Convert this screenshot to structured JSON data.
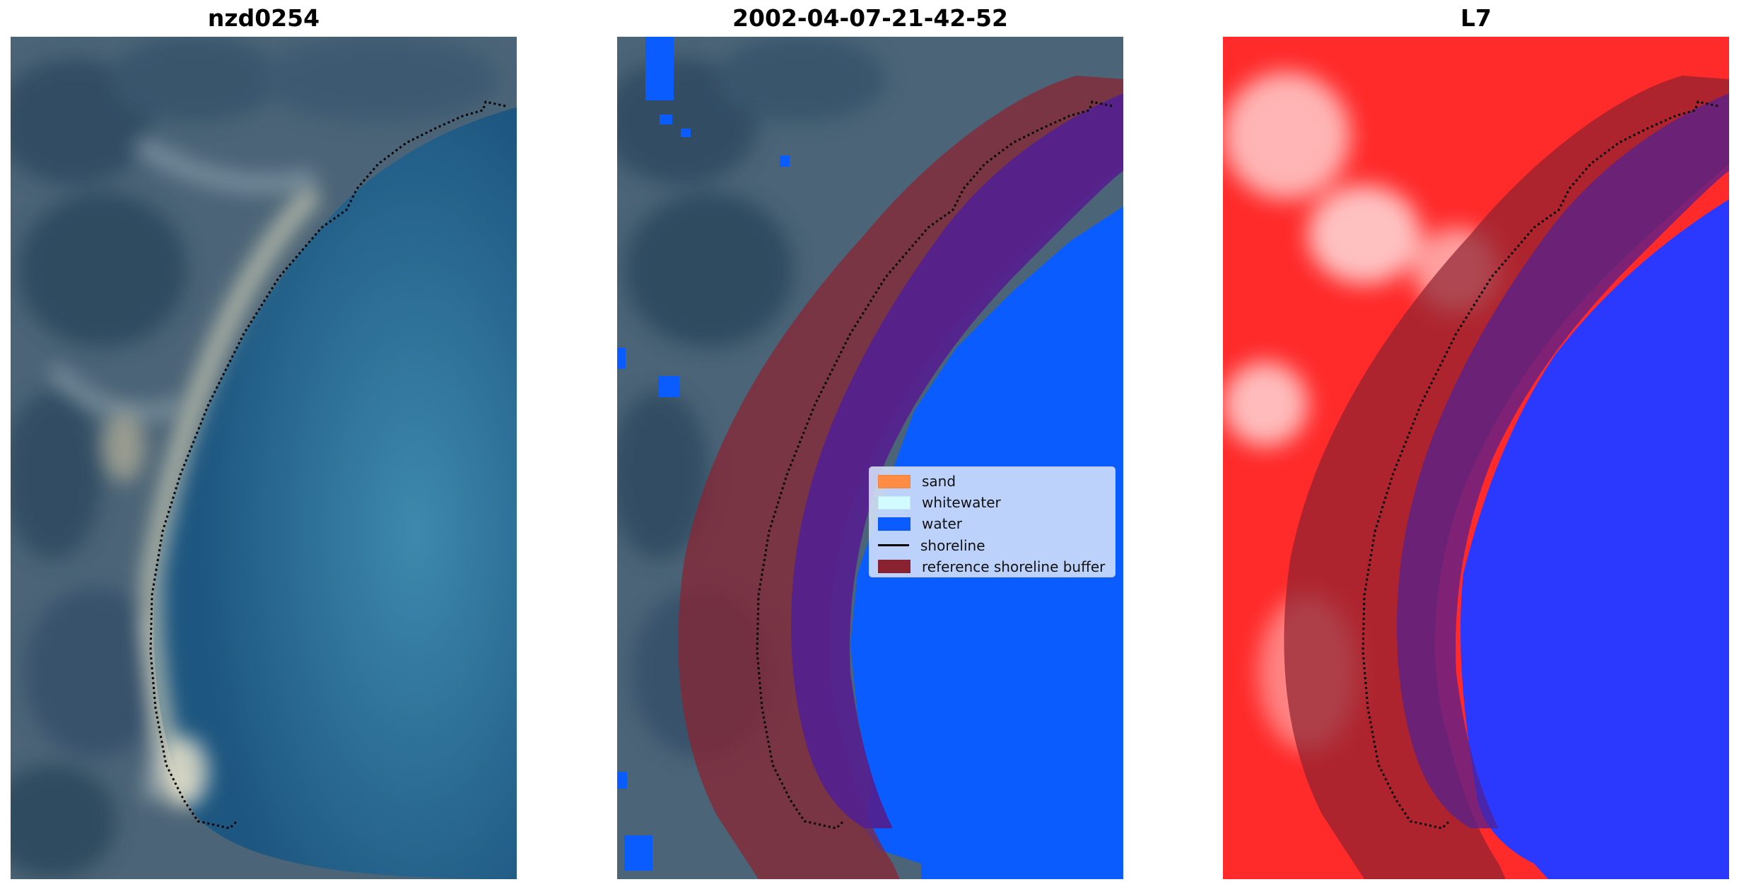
{
  "panels": [
    {
      "title": "nzd0254"
    },
    {
      "title": "2002-04-07-21-42-52"
    },
    {
      "title": "L7"
    }
  ],
  "legend": {
    "items": [
      {
        "label": "sand",
        "kind": "patch",
        "color": "#ff8c42"
      },
      {
        "label": "whitewater",
        "kind": "patch",
        "color": "#d2fbff"
      },
      {
        "label": "water",
        "kind": "patch",
        "color": "#0a5cff"
      },
      {
        "label": "shoreline",
        "kind": "line",
        "color": "#000000"
      },
      {
        "label": "reference shoreline buffer",
        "kind": "patch",
        "color": "#8b2231"
      }
    ]
  },
  "colors": {
    "land_rgb": "#4e6a80",
    "sea_rgb": "#2f6f9a",
    "classified_water": "#0a5cff",
    "buffer": "#8b2231",
    "buffer_over_water": "#54208f",
    "index_positive": "#ff2020",
    "index_negative": "#1a28ff"
  },
  "icons": [
    "legend-patch-icon",
    "legend-line-icon"
  ]
}
